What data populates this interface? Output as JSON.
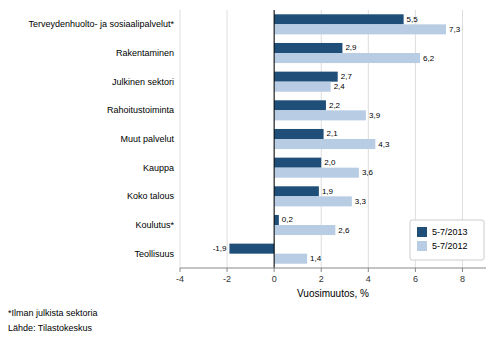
{
  "chart_data": {
    "type": "bar",
    "orientation": "horizontal",
    "categories": [
      "Terveydenhuolto- ja sosiaalipalvelut*",
      "Rakentaminen",
      "Julkinen sektori",
      "Rahoitustoiminta",
      "Muut palvelut",
      "Kauppa",
      "Koko talous",
      "Koulutus*",
      "Teollisuus"
    ],
    "series": [
      {
        "name": "5-7/2013",
        "color": "#1F4E79",
        "values": [
          5.5,
          2.9,
          2.7,
          2.2,
          2.1,
          2.0,
          1.9,
          0.2,
          -1.9
        ],
        "value_labels": [
          "5,5",
          "2,9",
          "2,7",
          "2,2",
          "2,1",
          "2,0",
          "1,9",
          "0,2",
          "-1,9"
        ]
      },
      {
        "name": "5-7/2012",
        "color": "#B8CCE4",
        "values": [
          7.3,
          6.2,
          2.4,
          3.9,
          4.3,
          3.6,
          3.3,
          2.6,
          1.4
        ],
        "value_labels": [
          "7,3",
          "6,2",
          "2,4",
          "3,9",
          "4,3",
          "3,6",
          "3,3",
          "2,6",
          "1,4"
        ]
      }
    ],
    "x_label": "Vuosimuutos, %",
    "xlim": [
      -4,
      9
    ],
    "xticks": [
      -4,
      -2,
      0,
      2,
      4,
      6,
      8
    ],
    "grid": true,
    "legend": "lower right",
    "data_labels": true,
    "annotations": [
      "*Ilman julkista sektoria",
      "Lähde: Tilastokeskus"
    ]
  }
}
